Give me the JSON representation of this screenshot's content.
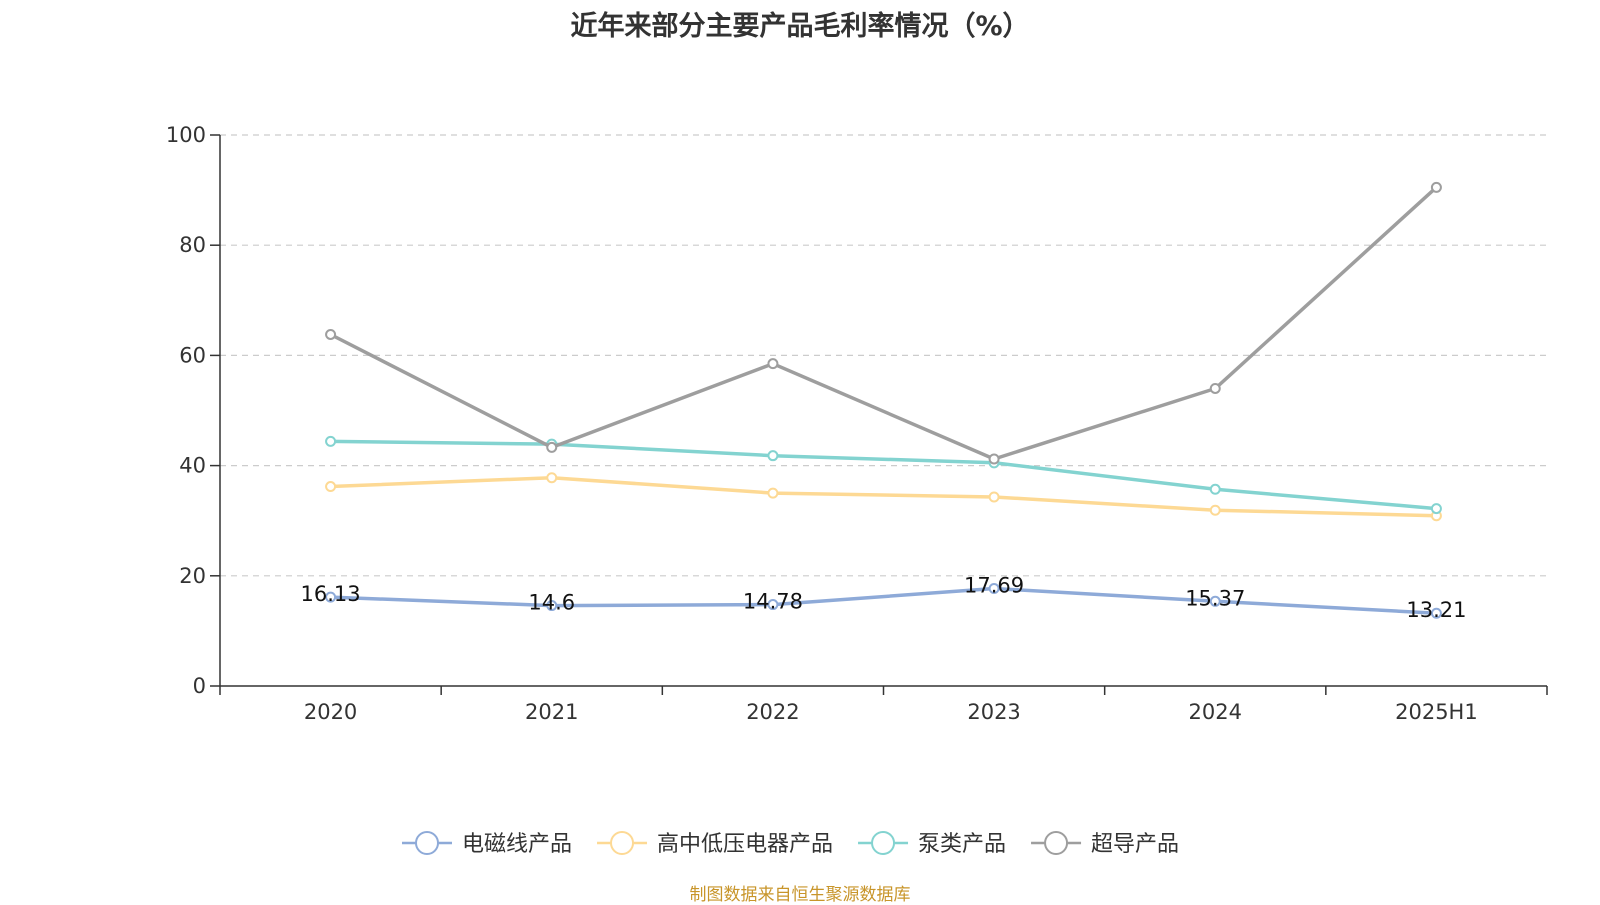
{
  "chart_data": {
    "type": "line",
    "title": "近年来部分主要产品毛利率情况（%）",
    "xlabel": "",
    "ylabel": "",
    "categories": [
      "2020",
      "2021",
      "2022",
      "2023",
      "2024",
      "2025H1"
    ],
    "ylim": [
      0,
      100
    ],
    "yticks": [
      0,
      20,
      40,
      60,
      80,
      100
    ],
    "grid": "horizontal-dashed",
    "legend_position": "bottom",
    "series": [
      {
        "name": "电磁线产品",
        "color": "#8eaad8",
        "values": [
          16.13,
          14.6,
          14.78,
          17.69,
          15.37,
          13.21
        ],
        "labels": [
          "16.13",
          "14.6",
          "14.78",
          "17.69",
          "15.37",
          "13.21"
        ]
      },
      {
        "name": "高中低压电器产品",
        "color": "#fdd994",
        "values": [
          36.2,
          37.8,
          35.0,
          34.3,
          31.9,
          30.9
        ]
      },
      {
        "name": "泵类产品",
        "color": "#83d3d0",
        "values": [
          44.4,
          43.9,
          41.8,
          40.5,
          35.7,
          32.2
        ]
      },
      {
        "name": "超导产品",
        "color": "#9e9e9e",
        "values": [
          63.8,
          43.3,
          58.5,
          41.2,
          54.0,
          90.5
        ]
      }
    ],
    "source": "制图数据来自恒生聚源数据库"
  }
}
